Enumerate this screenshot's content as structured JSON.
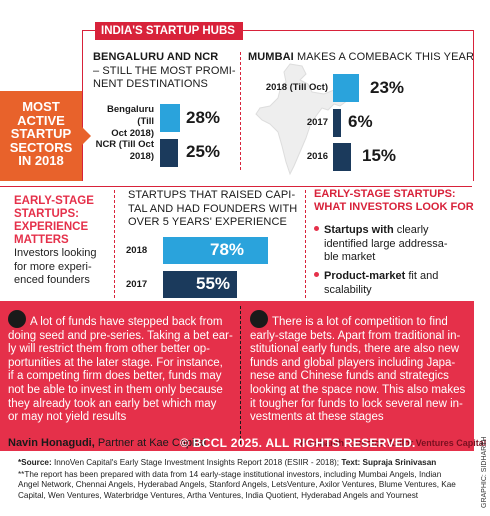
{
  "banner": "INDIA'S STARTUP HUBS",
  "sectors_box": [
    "MOST",
    "ACTIVE",
    "STARTUP",
    "SECTORS",
    "IN 2018"
  ],
  "bengaluru": {
    "title_bold": "BENGALURU AND NCR",
    "title_rest": [
      "– STILL THE MOST PROMI-",
      "NENT DESTINATIONS"
    ],
    "rows": [
      {
        "label": [
          "Bengaluru (Till",
          "Oct 2018)"
        ],
        "value": "28%",
        "pct": 28
      },
      {
        "label": [
          "NCR (Till Oct",
          "2018)"
        ],
        "value": "25%",
        "pct": 25
      }
    ]
  },
  "mumbai": {
    "title_bold": "MUMBAI",
    "title_rest": "MAKES A COMEBACK THIS YEAR",
    "rows": [
      {
        "label": "2018 (Till Oct)",
        "value": "23%",
        "pct": 23
      },
      {
        "label": "2017",
        "value": "6%",
        "pct": 6
      },
      {
        "label": "2016",
        "value": "15%",
        "pct": 15
      }
    ]
  },
  "early_left": {
    "title": [
      "EARLY-STAGE",
      "STARTUPS:",
      "EXPERIENCE",
      "MATTERS"
    ],
    "desc": [
      "Investors looking",
      "for more experi-",
      "enced founders"
    ]
  },
  "experience": {
    "title": [
      "STARTUPS THAT RAISED CAPI-",
      "TAL AND HAD FOUNDERS WITH",
      "OVER 5 YEARS' EXPERIENCE"
    ],
    "rows": [
      {
        "label": "2018",
        "value": "78%",
        "pct": 78
      },
      {
        "label": "2017",
        "value": "55%",
        "pct": 55
      }
    ]
  },
  "early_right": {
    "title": [
      "EARLY-STAGE STARTUPS:",
      "WHAT INVESTORS LOOK FOR"
    ],
    "bullet1": [
      "Startups with",
      " clearly",
      "identified large addressa-",
      "ble market"
    ],
    "bullet2": [
      "Product-market",
      " fit and",
      "scalability"
    ]
  },
  "quote_left": {
    "lines": [
      "A lot of funds have stepped back from",
      "doing seed and pre-series. Taking a bet ear-",
      "ly will restrict them from other better op-",
      "portunities at the later stage. For instance,",
      "if a competing firm does better, funds may",
      "not be able to invest in them only because",
      "they already took an early bet which may",
      "or may not yield results"
    ],
    "name": "Navin Honagudi,",
    "role": "Partner at Kae Capital"
  },
  "quote_right": {
    "lines": [
      "There is a lot of competition to find",
      "early-stage bets. Apart from traditional in-",
      "stitutional early funds, there are also new",
      "funds and global players including Japa-",
      "nese and Chinese funds and strategics",
      "looking at the space now. This also makes",
      "it tougher for funds to lock several new in-",
      "vestments at these stages"
    ],
    "attribution": "Prashanth, Director, Axilor Ventures Capital"
  },
  "watermark": "© BCCL 2025. ALL RIGHTS RESERVED.",
  "footnotes": {
    "source_label": "*Source:",
    "source_text": " InnoVen Capital's Early Stage Investment Insights Report 2018 (ESIIR - 2018);",
    "text_label": " Text:",
    "text_author": " Supraja Srinivasan",
    "note_lines": [
      "**The report has been prepared with data from 14 early-stage institutional investors, including Mumbai Angels, Indian",
      "Angel Network, Chennai Angels, Hyderabad Angels, Stanford Angels, LetsVenture, Axilor Ventures, Blume Ventures, Kae",
      "Capital, Wen Ventures, Waterbridge Ventures, Artha Ventures, India Quotient, Hyderabad Angels and Yournest"
    ]
  },
  "graphic_credit": "GRAPHIC: SIDHARTH",
  "colors": {
    "red": "#d8223a",
    "orange": "#e8622b",
    "bar_navy": "#1b3a5c",
    "bar_blue": "#2aa3dc"
  }
}
